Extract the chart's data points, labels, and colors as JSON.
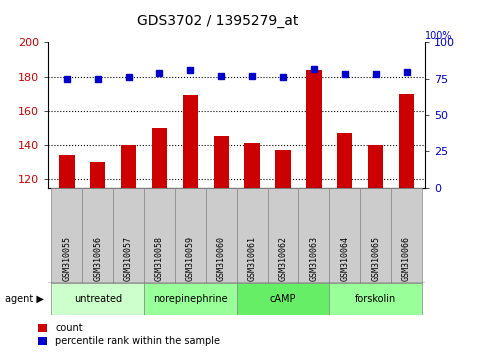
{
  "title": "GDS3702 / 1395279_at",
  "samples": [
    "GSM310055",
    "GSM310056",
    "GSM310057",
    "GSM310058",
    "GSM310059",
    "GSM310060",
    "GSM310061",
    "GSM310062",
    "GSM310063",
    "GSM310064",
    "GSM310065",
    "GSM310066"
  ],
  "counts": [
    134,
    130,
    140,
    150,
    169,
    145,
    141,
    137,
    184,
    147,
    140,
    170
  ],
  "percentiles": [
    75,
    75,
    76,
    79,
    81,
    77,
    77,
    76,
    82,
    78,
    78,
    80
  ],
  "agents": [
    {
      "label": "untreated",
      "start": 0,
      "end": 3,
      "color": "#ccffcc"
    },
    {
      "label": "norepinephrine",
      "start": 3,
      "end": 6,
      "color": "#99ff99"
    },
    {
      "label": "cAMP",
      "start": 6,
      "end": 9,
      "color": "#66ee66"
    },
    {
      "label": "forskolin",
      "start": 9,
      "end": 12,
      "color": "#99ff99"
    }
  ],
  "ylim_left": [
    115,
    200
  ],
  "ylim_right": [
    0,
    100
  ],
  "yticks_left": [
    120,
    140,
    160,
    180,
    200
  ],
  "yticks_right": [
    0,
    25,
    50,
    75,
    100
  ],
  "bar_color": "#cc0000",
  "dot_color": "#0000cc",
  "tick_label_color_left": "#cc0000",
  "tick_label_color_right": "#0000cc",
  "sample_bg_color": "#cccccc",
  "legend_count_color": "#cc0000",
  "legend_pct_color": "#0000cc",
  "fig_width": 4.83,
  "fig_height": 3.54,
  "dpi": 100
}
